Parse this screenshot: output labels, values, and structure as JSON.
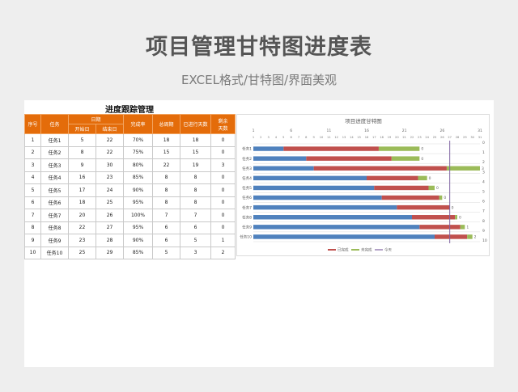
{
  "page": {
    "title": "项目管理甘特图进度表",
    "subtitle": "EXCEL格式/甘特图/界面美观"
  },
  "tracking": {
    "title": "进度跟踪管理",
    "headers": {
      "seq": "序号",
      "task": "任务",
      "date": "日期",
      "start": "开始日",
      "end": "结束日",
      "completion": "完成率",
      "total_days": "总周期",
      "elapsed_days": "已进行天数",
      "remaining_days_line1": "剩余",
      "remaining_days_line2": "天数"
    },
    "rows": [
      {
        "seq": "1",
        "task": "任务1",
        "start": "5",
        "end": "22",
        "completion": "70%",
        "total": "18",
        "elapsed": "18",
        "remaining": "0"
      },
      {
        "seq": "2",
        "task": "任务2",
        "start": "8",
        "end": "22",
        "completion": "75%",
        "total": "15",
        "elapsed": "15",
        "remaining": "0"
      },
      {
        "seq": "3",
        "task": "任务3",
        "start": "9",
        "end": "30",
        "completion": "80%",
        "total": "22",
        "elapsed": "19",
        "remaining": "3"
      },
      {
        "seq": "4",
        "task": "任务4",
        "start": "16",
        "end": "23",
        "completion": "85%",
        "total": "8",
        "elapsed": "8",
        "remaining": "0"
      },
      {
        "seq": "5",
        "task": "任务5",
        "start": "17",
        "end": "24",
        "completion": "90%",
        "total": "8",
        "elapsed": "8",
        "remaining": "0"
      },
      {
        "seq": "6",
        "task": "任务6",
        "start": "18",
        "end": "25",
        "completion": "95%",
        "total": "8",
        "elapsed": "8",
        "remaining": "0"
      },
      {
        "seq": "7",
        "task": "任务7",
        "start": "20",
        "end": "26",
        "completion": "100%",
        "total": "7",
        "elapsed": "7",
        "remaining": "0"
      },
      {
        "seq": "8",
        "task": "任务8",
        "start": "22",
        "end": "27",
        "completion": "95%",
        "total": "6",
        "elapsed": "6",
        "remaining": "0"
      },
      {
        "seq": "9",
        "task": "任务9",
        "start": "23",
        "end": "28",
        "completion": "90%",
        "total": "6",
        "elapsed": "5",
        "remaining": "1"
      },
      {
        "seq": "10",
        "task": "任务10",
        "start": "25",
        "end": "29",
        "completion": "85%",
        "total": "5",
        "elapsed": "3",
        "remaining": "2"
      }
    ]
  },
  "chart_data": {
    "type": "bar",
    "orientation": "horizontal-stacked",
    "title": "项目进度甘特图",
    "categories": [
      "任务1",
      "任务2",
      "任务3",
      "任务4",
      "任务5",
      "任务6",
      "任务7",
      "任务8",
      "任务9",
      "任务10"
    ],
    "series": [
      {
        "name": "",
        "color": "#4f81bd",
        "values": [
          5,
          8,
          9,
          16,
          17,
          18,
          20,
          22,
          23,
          25
        ]
      },
      {
        "name": "已完成",
        "color": "#c0504d",
        "values": [
          12.6,
          11.3,
          17.6,
          6.8,
          7.2,
          7.6,
          7,
          5.7,
          5.4,
          4.3
        ]
      },
      {
        "name": "未完成",
        "color": "#9bbb59",
        "values": [
          5.4,
          3.7,
          4.4,
          1.2,
          0.8,
          0.4,
          0,
          0.3,
          0.6,
          0.7
        ]
      }
    ],
    "segment_labels": [
      "0",
      "0",
      "3",
      "0",
      "0",
      "0",
      "0",
      "0",
      "1",
      "2"
    ],
    "today": {
      "name": "今天",
      "value": 27,
      "color": "#8064a2"
    },
    "xlim": [
      1,
      31
    ],
    "top_ticks": [
      "1",
      "6",
      "11",
      "16",
      "21",
      "26",
      "31"
    ],
    "bottom_ticks": [
      "1",
      "2",
      "3",
      "4",
      "5",
      "6",
      "7",
      "8",
      "9",
      "10",
      "11",
      "12",
      "13",
      "14",
      "15",
      "16",
      "17",
      "18",
      "19",
      "20",
      "21",
      "22",
      "23",
      "24",
      "25",
      "26",
      "27",
      "28",
      "29",
      "30",
      "31"
    ],
    "right_ticks": [
      "0",
      "1",
      "2",
      "3",
      "4",
      "5",
      "6",
      "7",
      "8",
      "9",
      "10"
    ],
    "grid": true,
    "legend_position": "bottom"
  }
}
